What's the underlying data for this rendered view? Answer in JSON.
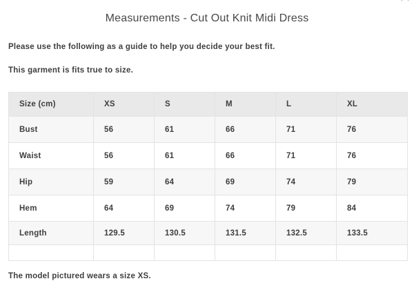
{
  "modal": {
    "title": "Measurements - Cut Out Knit Midi Dress",
    "close_glyph": "✕"
  },
  "intro": {
    "line1": "Please use the following as a guide to help you decide your best fit.",
    "line2": "This garment is fits true to size."
  },
  "table": {
    "headers": [
      "Size (cm)",
      "XS",
      "S",
      "M",
      "L",
      "XL"
    ],
    "rows": [
      {
        "label": "Bust",
        "values": [
          "56",
          "61",
          "66",
          "71",
          "76"
        ]
      },
      {
        "label": "Waist",
        "values": [
          "56",
          "61",
          "66",
          "71",
          "76"
        ]
      },
      {
        "label": "Hip",
        "values": [
          "59",
          "64",
          "69",
          "74",
          "79"
        ]
      },
      {
        "label": "Hem",
        "values": [
          "64",
          "69",
          "74",
          "79",
          "84"
        ]
      },
      {
        "label": "Length",
        "values": [
          "129.5",
          "130.5",
          "131.5",
          "132.5",
          "133.5"
        ]
      }
    ]
  },
  "footer": {
    "note": "The model pictured wears a size XS."
  },
  "colors": {
    "header_bg": "#e9e9e9",
    "row_alt_bg": "#f7f7f7",
    "border": "#e3e3e3",
    "text": "#3e3e3e",
    "title_text": "#484848",
    "close_icon": "#c3c3c3",
    "background": "#ffffff"
  }
}
